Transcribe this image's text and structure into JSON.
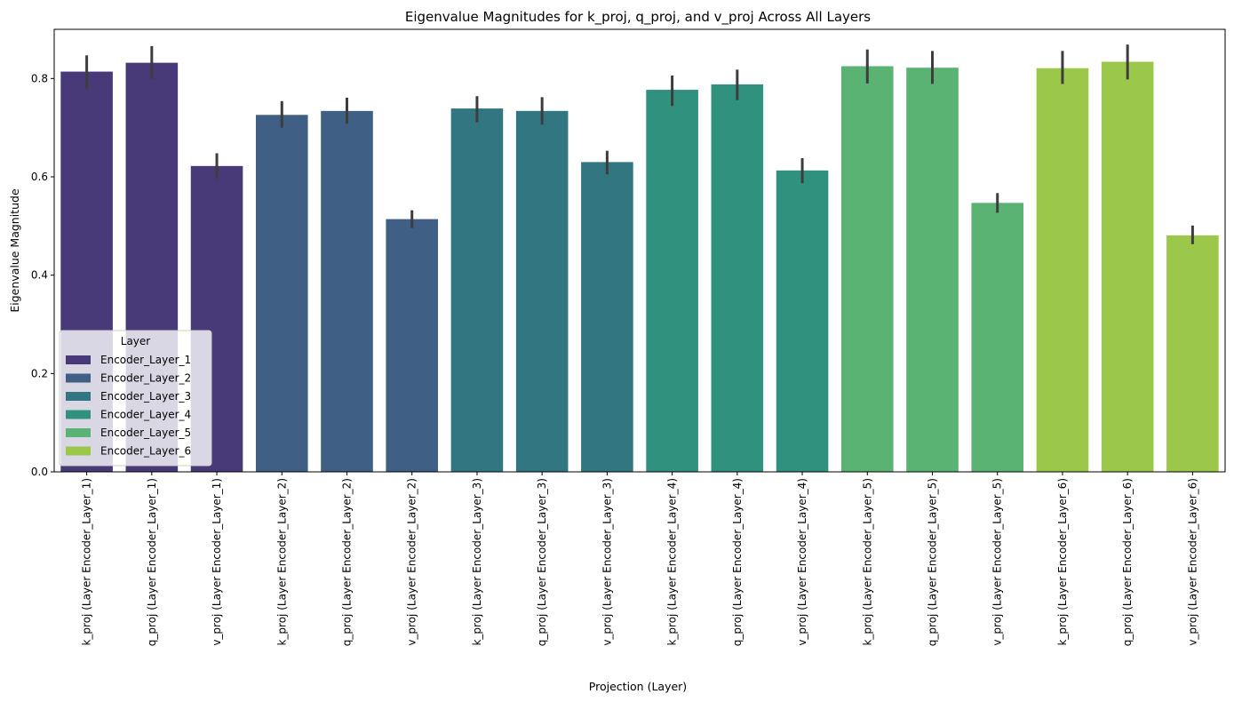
{
  "chart_data": {
    "type": "bar",
    "title": "Eigenvalue Magnitudes for k_proj, q_proj, and v_proj Across All Layers",
    "xlabel": "Projection (Layer)",
    "ylabel": "Eigenvalue Magnitude",
    "ylim": [
      0,
      0.9
    ],
    "yticks": [
      "0.0",
      "0.2",
      "0.4",
      "0.6",
      "0.8"
    ],
    "grid": false,
    "legend": {
      "title": "Layer",
      "placement": "lower-left",
      "entries": [
        {
          "name": "Encoder_Layer_1",
          "color": "#483a78"
        },
        {
          "name": "Encoder_Layer_2",
          "color": "#3f5f85"
        },
        {
          "name": "Encoder_Layer_3",
          "color": "#327682"
        },
        {
          "name": "Encoder_Layer_4",
          "color": "#31917f"
        },
        {
          "name": "Encoder_Layer_5",
          "color": "#5ab373"
        },
        {
          "name": "Encoder_Layer_6",
          "color": "#9bc74b"
        }
      ]
    },
    "categories": [
      "k_proj (Layer Encoder_Layer_1)",
      "q_proj (Layer Encoder_Layer_1)",
      "v_proj (Layer Encoder_Layer_1)",
      "k_proj (Layer Encoder_Layer_2)",
      "q_proj (Layer Encoder_Layer_2)",
      "v_proj (Layer Encoder_Layer_2)",
      "k_proj (Layer Encoder_Layer_3)",
      "q_proj (Layer Encoder_Layer_3)",
      "v_proj (Layer Encoder_Layer_3)",
      "k_proj (Layer Encoder_Layer_4)",
      "q_proj (Layer Encoder_Layer_4)",
      "v_proj (Layer Encoder_Layer_4)",
      "k_proj (Layer Encoder_Layer_5)",
      "q_proj (Layer Encoder_Layer_5)",
      "v_proj (Layer Encoder_Layer_5)",
      "k_proj (Layer Encoder_Layer_6)",
      "q_proj (Layer Encoder_Layer_6)",
      "v_proj (Layer Encoder_Layer_6)"
    ],
    "layer_index": [
      0,
      0,
      0,
      1,
      1,
      1,
      2,
      2,
      2,
      3,
      3,
      3,
      4,
      4,
      4,
      5,
      5,
      5
    ],
    "values": [
      0.814,
      0.832,
      0.622,
      0.726,
      0.734,
      0.514,
      0.739,
      0.734,
      0.63,
      0.777,
      0.788,
      0.613,
      0.825,
      0.822,
      0.547,
      0.821,
      0.834,
      0.481
    ],
    "error_low": [
      0.778,
      0.799,
      0.597,
      0.7,
      0.708,
      0.496,
      0.711,
      0.706,
      0.605,
      0.744,
      0.756,
      0.587,
      0.79,
      0.789,
      0.527,
      0.789,
      0.798,
      0.463
    ],
    "error_high": [
      0.847,
      0.866,
      0.648,
      0.754,
      0.761,
      0.532,
      0.764,
      0.762,
      0.653,
      0.806,
      0.818,
      0.638,
      0.859,
      0.856,
      0.567,
      0.856,
      0.869,
      0.501
    ]
  }
}
